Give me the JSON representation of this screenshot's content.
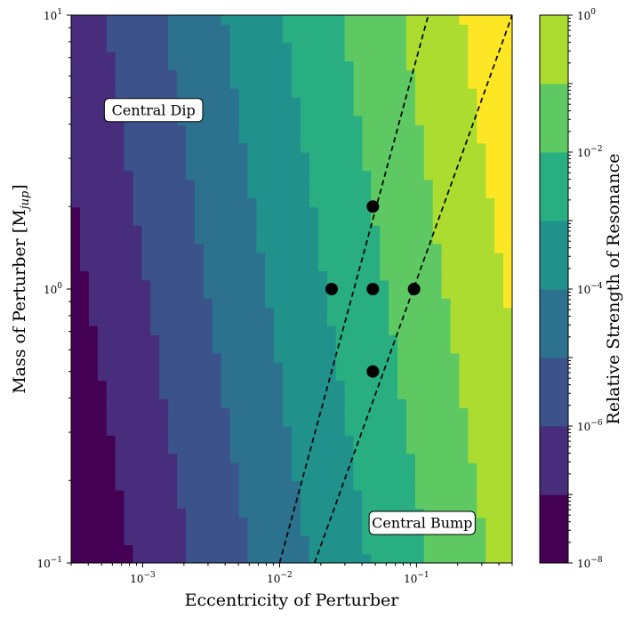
{
  "chart_data": {
    "type": "heatmap",
    "title": "",
    "xlabel": "Eccentricity of Perturber",
    "ylabel": "Mass of Perturber [M",
    "ylabel_sub": "jup",
    "ylabel_close": "]",
    "colorbar_label": "Relative Strength of Resonance",
    "x_scale": "log",
    "y_scale": "log",
    "xlim": [
      0.0003,
      0.5
    ],
    "ylim": [
      0.1,
      10
    ],
    "x_ticks": [
      {
        "value": 0.001,
        "base": "10",
        "exp": "−3"
      },
      {
        "value": 0.01,
        "base": "10",
        "exp": "−2"
      },
      {
        "value": 0.1,
        "base": "10",
        "exp": "−1"
      }
    ],
    "y_ticks": [
      {
        "value": 0.1,
        "base": "10",
        "exp": "−1"
      },
      {
        "value": 1,
        "base": "10",
        "exp": "0"
      },
      {
        "value": 10,
        "base": "10",
        "exp": "1"
      }
    ],
    "colorbar": {
      "scale": "log",
      "range": [
        1e-08,
        1
      ],
      "levels": [
        1e-08,
        1e-07,
        1e-06,
        1e-05,
        0.0001,
        0.001,
        0.01,
        0.1,
        1
      ],
      "colors": [
        "#440154",
        "#472d7b",
        "#3b528b",
        "#2c728e",
        "#21918c",
        "#28ae80",
        "#5ec962",
        "#addc30",
        "#fde725"
      ],
      "ticks": [
        {
          "value": 1e-08,
          "base": "10",
          "exp": "−8"
        },
        {
          "value": 1e-06,
          "base": "10",
          "exp": "−6"
        },
        {
          "value": 0.0001,
          "base": "10",
          "exp": "−4"
        },
        {
          "value": 0.01,
          "base": "10",
          "exp": "−2"
        },
        {
          "value": 1,
          "base": "10",
          "exp": "0"
        }
      ]
    },
    "field_model": {
      "description_free": true,
      "log_strength_at_ref": -8,
      "ref_ecc": 0.0003,
      "ref_mass": 0.1,
      "ecc_power": 2.3,
      "mass_power": 0.72
    },
    "dashed_lines": [
      {
        "points": [
          [
            0.01,
            0.1
          ],
          [
            0.122,
            10
          ]
        ]
      },
      {
        "points": [
          [
            0.018,
            0.1
          ],
          [
            0.5,
            10
          ]
        ]
      }
    ],
    "points": [
      {
        "x": 0.048,
        "y": 2
      },
      {
        "x": 0.024,
        "y": 1
      },
      {
        "x": 0.048,
        "y": 1
      },
      {
        "x": 0.096,
        "y": 1
      },
      {
        "x": 0.048,
        "y": 0.5
      }
    ],
    "annotations": [
      {
        "text": "Central Dip",
        "x": 0.0012,
        "y": 4.5
      },
      {
        "text": "Central Bump",
        "x": 0.11,
        "y": 0.14
      }
    ]
  }
}
